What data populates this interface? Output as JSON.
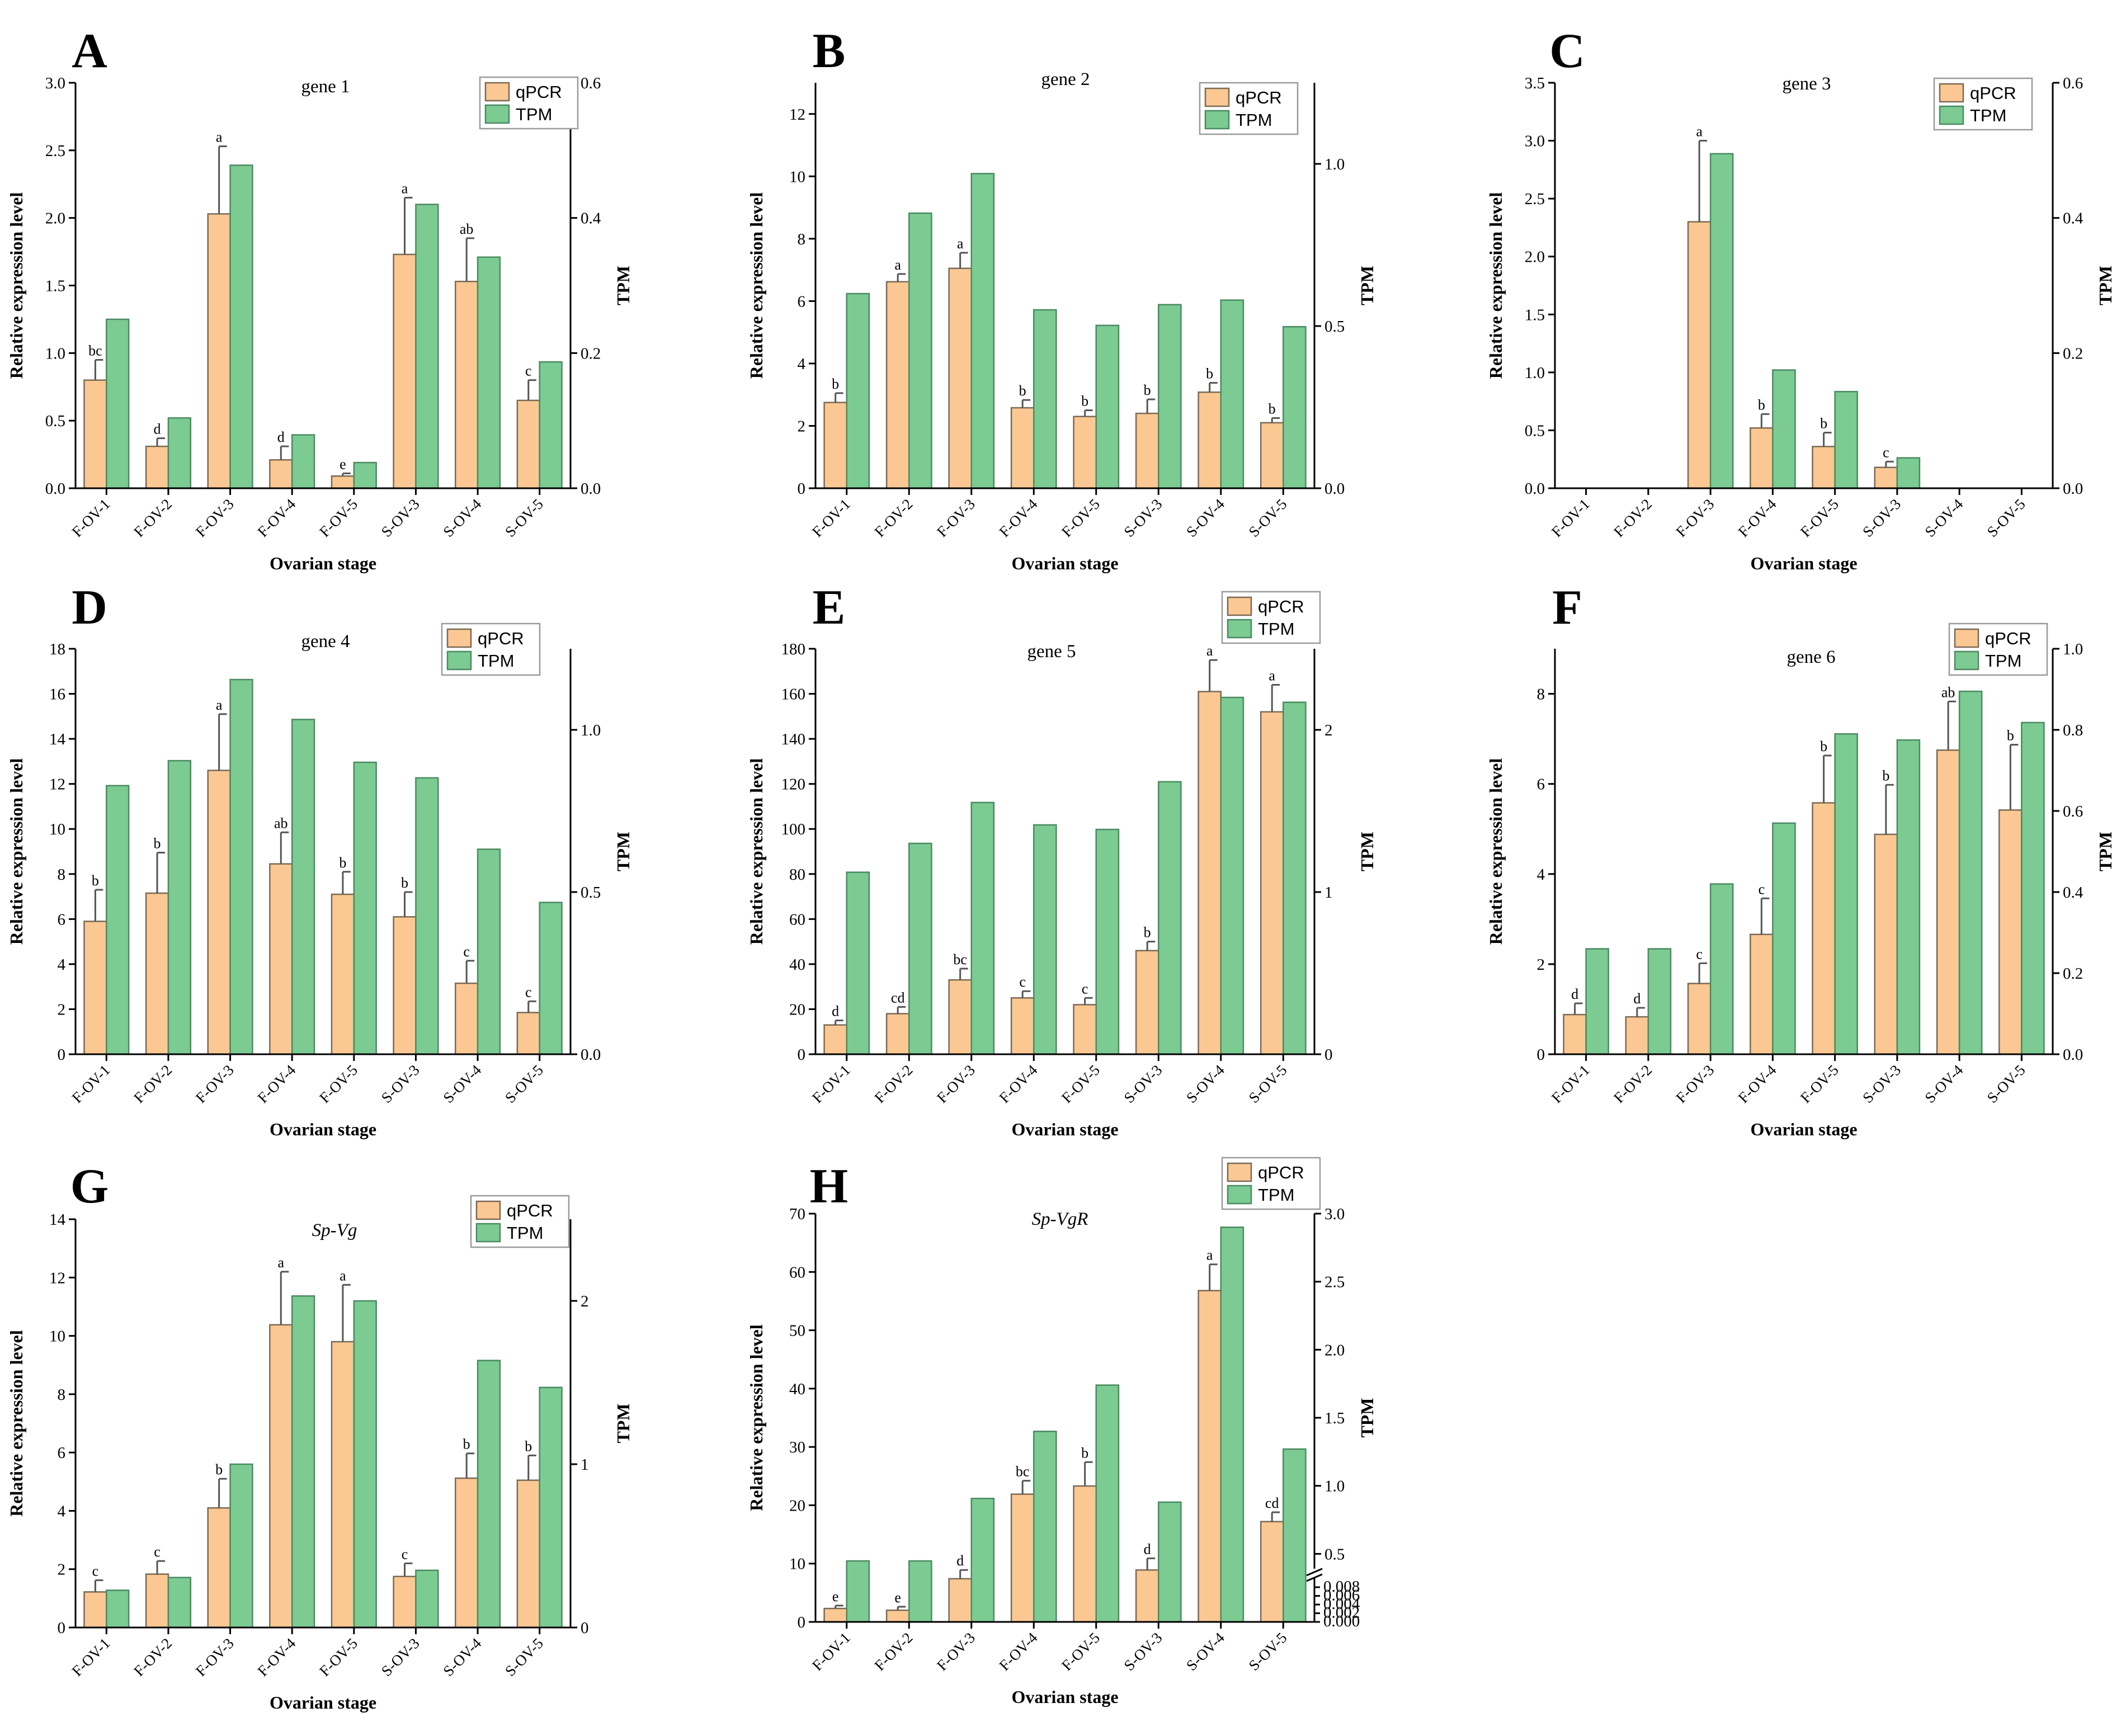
{
  "figure": {
    "xlabel": "Ovarian stage",
    "ylabel": "Relative expression level",
    "y2label": "TPM",
    "legend": {
      "qpcr": "qPCR",
      "tpm": "TPM"
    },
    "colors": {
      "qpcr": "#fbc893",
      "tpm": "#7ccb92"
    }
  },
  "chart_data": [
    {
      "letter": "A",
      "title": "gene 1",
      "type": "bar",
      "categories": [
        "F-OV-1",
        "F-OV-2",
        "F-OV-3",
        "F-OV-4",
        "F-OV-5",
        "S-OV-3",
        "S-OV-4",
        "S-OV-5"
      ],
      "ylim": [
        0,
        3.0
      ],
      "yticks": [
        "0.0",
        "0.5",
        "1.0",
        "1.5",
        "2.0",
        "2.5",
        "3.0"
      ],
      "y2lim": [
        0,
        0.6
      ],
      "y2ticks": [
        "0.0",
        "0.2",
        "0.4",
        "0.6"
      ],
      "series": [
        {
          "name": "qPCR",
          "values": [
            0.8,
            0.31,
            2.03,
            0.21,
            0.09,
            1.73,
            1.53,
            0.65
          ],
          "errors": [
            0.15,
            0.06,
            0.5,
            0.1,
            0.02,
            0.42,
            0.32,
            0.15
          ],
          "labels": [
            "bc",
            "d",
            "a",
            "d",
            "e",
            "a",
            "ab",
            "c"
          ]
        },
        {
          "name": "TPM",
          "values": [
            0.25,
            0.104,
            0.478,
            0.079,
            0.038,
            0.42,
            0.342,
            0.187
          ]
        }
      ]
    },
    {
      "letter": "B",
      "title": "gene 2",
      "type": "bar",
      "categories": [
        "F-OV-1",
        "F-OV-2",
        "F-OV-3",
        "F-OV-4",
        "F-OV-5",
        "S-OV-3",
        "S-OV-4",
        "S-OV-5"
      ],
      "ylim": [
        0,
        13
      ],
      "yticks": [
        "0",
        "2",
        "4",
        "6",
        "8",
        "10",
        "12"
      ],
      "y2lim": [
        0,
        1.25
      ],
      "y2ticks": [
        "0.0",
        "0.5",
        "1.0"
      ],
      "series": [
        {
          "name": "qPCR",
          "values": [
            2.75,
            6.62,
            7.05,
            2.58,
            2.3,
            2.4,
            3.08,
            2.1
          ],
          "errors": [
            0.3,
            0.25,
            0.5,
            0.25,
            0.2,
            0.45,
            0.3,
            0.15
          ],
          "labels": [
            "b",
            "a",
            "a",
            "b",
            "b",
            "b",
            "b",
            "b"
          ]
        },
        {
          "name": "TPM",
          "values": [
            0.6,
            0.848,
            0.97,
            0.55,
            0.502,
            0.566,
            0.58,
            0.498
          ]
        }
      ]
    },
    {
      "letter": "C",
      "title": "gene 3",
      "type": "bar",
      "categories": [
        "F-OV-1",
        "F-OV-2",
        "F-OV-3",
        "F-OV-4",
        "F-OV-5",
        "S-OV-3",
        "S-OV-4",
        "S-OV-5"
      ],
      "ylim": [
        0,
        3.5
      ],
      "yticks": [
        "0.0",
        "0.5",
        "1.0",
        "1.5",
        "2.0",
        "2.5",
        "3.0",
        "3.5"
      ],
      "y2lim": [
        0,
        0.6
      ],
      "y2ticks": [
        "0.0",
        "0.2",
        "0.4",
        "0.6"
      ],
      "series": [
        {
          "name": "qPCR",
          "values": [
            0,
            0,
            2.3,
            0.52,
            0.36,
            0.18,
            0,
            0
          ],
          "errors": [
            0,
            0,
            0.7,
            0.12,
            0.12,
            0.05,
            0,
            0
          ],
          "labels": [
            "",
            "",
            "a",
            "b",
            "b",
            "c",
            "",
            ""
          ]
        },
        {
          "name": "TPM",
          "values": [
            0,
            0,
            0.495,
            0.175,
            0.143,
            0.045,
            0,
            0
          ]
        }
      ]
    },
    {
      "letter": "D",
      "title": "gene 4",
      "type": "bar",
      "categories": [
        "F-OV-1",
        "F-OV-2",
        "F-OV-3",
        "F-OV-4",
        "F-OV-5",
        "S-OV-3",
        "S-OV-4",
        "S-OV-5"
      ],
      "ylim": [
        0,
        18
      ],
      "yticks": [
        "0",
        "2",
        "4",
        "6",
        "8",
        "10",
        "12",
        "14",
        "16",
        "18"
      ],
      "y2lim": [
        0,
        1.25
      ],
      "y2ticks": [
        "0.0",
        "0.5",
        "1.0"
      ],
      "series": [
        {
          "name": "qPCR",
          "values": [
            5.9,
            7.15,
            12.6,
            8.45,
            7.1,
            6.1,
            3.15,
            1.85
          ],
          "errors": [
            1.4,
            1.8,
            2.5,
            1.4,
            1.0,
            1.1,
            1.0,
            0.5
          ],
          "labels": [
            "b",
            "b",
            "a",
            "ab",
            "b",
            "b",
            "c",
            "c"
          ]
        },
        {
          "name": "TPM",
          "values": [
            0.828,
            0.905,
            1.155,
            1.032,
            0.9,
            0.852,
            0.632,
            0.468
          ]
        }
      ]
    },
    {
      "letter": "E",
      "title": "gene 5",
      "type": "bar",
      "categories": [
        "F-OV-1",
        "F-OV-2",
        "F-OV-3",
        "F-OV-4",
        "F-OV-5",
        "S-OV-3",
        "S-OV-4",
        "S-OV-5"
      ],
      "ylim": [
        0,
        180
      ],
      "yticks": [
        "0",
        "20",
        "40",
        "60",
        "80",
        "100",
        "120",
        "140",
        "160",
        "180"
      ],
      "y2lim": [
        0,
        2.5
      ],
      "y2ticks": [
        "0",
        "1",
        "2"
      ],
      "series": [
        {
          "name": "qPCR",
          "values": [
            13,
            18,
            33,
            25,
            22,
            46,
            161,
            152
          ],
          "errors": [
            2,
            3,
            5,
            3,
            3,
            4,
            14,
            12
          ],
          "labels": [
            "d",
            "cd",
            "bc",
            "c",
            "c",
            "b",
            "a",
            "a"
          ]
        },
        {
          "name": "TPM",
          "values": [
            1.122,
            1.3,
            1.552,
            1.414,
            1.386,
            1.68,
            2.2,
            2.17
          ]
        }
      ]
    },
    {
      "letter": "F",
      "title": "gene 6",
      "type": "bar",
      "categories": [
        "F-OV-1",
        "F-OV-2",
        "F-OV-3",
        "F-OV-4",
        "F-OV-5",
        "S-OV-3",
        "S-OV-4",
        "S-OV-5"
      ],
      "ylim": [
        0,
        9
      ],
      "yticks": [
        "0",
        "2",
        "4",
        "6",
        "8"
      ],
      "y2lim": [
        0,
        1.0
      ],
      "y2ticks": [
        "0.0",
        "0.2",
        "0.4",
        "0.6",
        "0.8",
        "1.0"
      ],
      "series": [
        {
          "name": "qPCR",
          "values": [
            0.88,
            0.83,
            1.57,
            2.66,
            5.58,
            4.88,
            6.75,
            5.42
          ],
          "errors": [
            0.25,
            0.2,
            0.45,
            0.8,
            1.05,
            1.1,
            1.08,
            1.45
          ],
          "labels": [
            "d",
            "d",
            "c",
            "c",
            "b",
            "b",
            "ab",
            "b"
          ]
        },
        {
          "name": "TPM",
          "values": [
            0.26,
            0.26,
            0.42,
            0.57,
            0.79,
            0.775,
            0.895,
            0.818
          ]
        }
      ]
    },
    {
      "letter": "G",
      "title": "Sp-Vg",
      "type": "bar",
      "categories": [
        "F-OV-1",
        "F-OV-2",
        "F-OV-3",
        "F-OV-4",
        "F-OV-5",
        "S-OV-3",
        "S-OV-4",
        "S-OV-5"
      ],
      "ylim": [
        0,
        14
      ],
      "yticks": [
        "0",
        "2",
        "4",
        "6",
        "8",
        "10",
        "12",
        "14"
      ],
      "y2lim": [
        0,
        2.5
      ],
      "y2ticks": [
        "0",
        "1",
        "2"
      ],
      "series": [
        {
          "name": "qPCR",
          "values": [
            1.22,
            1.83,
            4.1,
            10.38,
            9.8,
            1.75,
            5.12,
            5.05
          ],
          "errors": [
            0.4,
            0.45,
            1.0,
            1.82,
            1.95,
            0.45,
            0.85,
            0.85
          ],
          "labels": [
            "c",
            "c",
            "b",
            "a",
            "a",
            "c",
            "b",
            "b"
          ]
        },
        {
          "name": "TPM",
          "values": [
            0.228,
            0.306,
            1.0,
            2.03,
            2.0,
            0.35,
            1.635,
            1.47
          ]
        }
      ]
    },
    {
      "letter": "H",
      "title": "Sp-VgR",
      "type": "bar",
      "categories": [
        "F-OV-1",
        "F-OV-2",
        "F-OV-3",
        "F-OV-4",
        "F-OV-5",
        "S-OV-3",
        "S-OV-4",
        "S-OV-5"
      ],
      "ylim": [
        0,
        70
      ],
      "yticks": [
        "0",
        "10",
        "20",
        "30",
        "40",
        "50",
        "60",
        "70"
      ],
      "y2lim": [
        0,
        3.0
      ],
      "y2ticks": [
        "0.5",
        "1.0",
        "1.5",
        "2.0",
        "2.5",
        "3.0"
      ],
      "y2break_ticks": [
        "0.000",
        "0.002",
        "0.004",
        "0.006",
        "0.008"
      ],
      "series": [
        {
          "name": "qPCR",
          "values": [
            2.3,
            2.0,
            7.4,
            21.9,
            23.3,
            8.9,
            56.8,
            17.2
          ],
          "errors": [
            0.5,
            0.6,
            1.5,
            2.3,
            4.1,
            2.0,
            4.5,
            1.6
          ],
          "labels": [
            "e",
            "e",
            "d",
            "bc",
            "b",
            "d",
            "a",
            "cd"
          ]
        },
        {
          "name": "TPM",
          "values": [
            0.448,
            0.448,
            0.907,
            1.4,
            1.74,
            0.88,
            2.9,
            1.27
          ]
        }
      ]
    }
  ]
}
